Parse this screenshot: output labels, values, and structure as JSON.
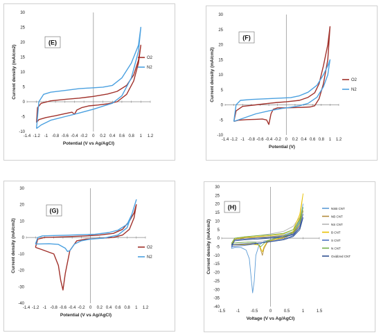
{
  "chart_data": [
    {
      "panel": "(E)",
      "type": "line",
      "xlabel": "Potential (V vs Ag/AgCl)",
      "ylabel": "Current density (mA/cm2)",
      "xlim": [
        -1.4,
        1.2
      ],
      "ylim": [
        -10,
        30
      ],
      "xticks": [
        -1.4,
        -1.2,
        -1,
        -0.8,
        -0.6,
        -0.4,
        -0.2,
        0,
        0.2,
        0.4,
        0.6,
        0.8,
        1,
        1.2
      ],
      "yticks": [
        -10,
        -5,
        0,
        5,
        10,
        15,
        20,
        25,
        30
      ],
      "xtick_labels": [
        "-1.4",
        "-1.2",
        "-1",
        "-0.8",
        "-0.6",
        "-0.4",
        "-0.2",
        "0",
        "0.2",
        "0.4",
        "0.6",
        "0.8",
        "1",
        "1.2"
      ],
      "ytick_labels": [
        "-10",
        "-5",
        "0",
        "5",
        "10",
        "15",
        "20",
        "25",
        "30"
      ],
      "legend_position": "right",
      "series": [
        {
          "name": "O2",
          "color": "#a0302a",
          "x": [
            -1.2,
            -1.18,
            -1.1,
            -0.9,
            -0.6,
            -0.3,
            0,
            0.3,
            0.5,
            0.7,
            0.85,
            0.95,
            1.0,
            0.95,
            0.85,
            0.7,
            0.5,
            0.3,
            0.1,
            -0.1,
            -0.25,
            -0.35,
            -0.4,
            -0.45,
            -0.6,
            -0.8,
            -1.0,
            -1.15,
            -1.2
          ],
          "y": [
            -7,
            -2,
            -0.5,
            0.3,
            0.8,
            1.2,
            1.8,
            2.6,
            3.5,
            5.5,
            9,
            14,
            19,
            13,
            7,
            2.5,
            0,
            -0.7,
            -1.1,
            -1.4,
            -2,
            -2.8,
            -4.2,
            -3.5,
            -4,
            -4.7,
            -5.3,
            -6,
            -7
          ]
        },
        {
          "name": "N2",
          "color": "#4aa0e0",
          "x": [
            -1.2,
            -1.15,
            -1.05,
            -0.9,
            -0.6,
            -0.3,
            0,
            0.2,
            0.4,
            0.6,
            0.8,
            0.95,
            1.0,
            0.95,
            0.8,
            0.6,
            0.4,
            0.2,
            0,
            -0.3,
            -0.6,
            -0.9,
            -1.1,
            -1.2
          ],
          "y": [
            -9,
            0,
            2.5,
            3.2,
            3.8,
            4.4,
            4.7,
            4.9,
            5.5,
            8,
            13,
            19,
            25,
            17,
            8,
            2,
            -0.5,
            -1.5,
            -2.5,
            -3.8,
            -5,
            -6.2,
            -7.8,
            -9
          ]
        }
      ]
    },
    {
      "panel": "(F)",
      "type": "line",
      "xlabel": "Potential (V)",
      "ylabel": "Current density (mA/cm2)",
      "xlim": [
        -1.4,
        1.2
      ],
      "ylim": [
        -10,
        30
      ],
      "xticks": [
        -1.4,
        -1.2,
        -1,
        -0.8,
        -0.6,
        -0.4,
        -0.2,
        0,
        0.2,
        0.4,
        0.6,
        0.8,
        1,
        1.2
      ],
      "yticks": [
        -10,
        -5,
        0,
        5,
        10,
        15,
        20,
        25,
        30
      ],
      "xtick_labels": [
        "-1.4",
        "-1.2",
        "-1",
        "-0.8",
        "-0.6",
        "-0.4",
        "-0.2",
        "0",
        "0.2",
        "0.4",
        "0.6",
        "0.8",
        "1",
        "1.2"
      ],
      "ytick_labels": [
        "-10",
        "-5",
        "0",
        "5",
        "10",
        "15",
        "20",
        "25",
        "30"
      ],
      "legend_position": "right",
      "series": [
        {
          "name": "O2",
          "color": "#a0302a",
          "x": [
            -1.2,
            -1.15,
            -1.0,
            -0.7,
            -0.4,
            -0.2,
            0,
            0.3,
            0.5,
            0.65,
            0.75,
            0.85,
            0.95,
            1.0,
            0.95,
            0.85,
            0.75,
            0.65,
            0.55,
            0.4,
            0.2,
            0,
            -0.2,
            -0.3,
            -0.35,
            -0.4,
            -0.45,
            -0.55,
            -0.7,
            -0.9,
            -1.1,
            -1.2
          ],
          "y": [
            -5.5,
            -2,
            -0.5,
            0,
            0.5,
            0.8,
            1,
            1.5,
            2.5,
            4,
            7,
            13,
            20,
            26,
            15,
            7,
            2,
            -0.3,
            -0.7,
            -0.8,
            -0.9,
            -1,
            -1,
            -1.5,
            -3,
            -6.5,
            -5,
            -4.7,
            -4.8,
            -4.9,
            -5.1,
            -5.5
          ]
        },
        {
          "name": "N2",
          "color": "#4aa0e0",
          "x": [
            -1.2,
            -1.15,
            -1.05,
            -0.8,
            -0.5,
            -0.2,
            0.1,
            0.3,
            0.5,
            0.7,
            0.85,
            0.95,
            1.0,
            0.95,
            0.85,
            0.7,
            0.5,
            0.3,
            0.1,
            -0.1,
            -0.4,
            -0.7,
            -1.0,
            -1.2
          ],
          "y": [
            -5.5,
            0,
            1.5,
            1.8,
            2,
            2.2,
            2.4,
            3,
            4.2,
            6.5,
            10,
            13,
            15,
            10,
            6,
            2.5,
            0.5,
            -0.3,
            -0.8,
            -1.2,
            -2,
            -3,
            -4.5,
            -5.5
          ]
        }
      ]
    },
    {
      "panel": "(G)",
      "type": "line",
      "xlabel": "Potential (V vs Ag/AgCl)",
      "ylabel": "Current density (mA/cm2)",
      "xlim": [
        -1.4,
        1.2
      ],
      "ylim": [
        -40,
        30
      ],
      "xticks": [
        -1.4,
        -1.2,
        -1,
        -0.8,
        -0.6,
        -0.4,
        -0.2,
        0,
        0.2,
        0.4,
        0.6,
        0.8,
        1,
        1.2
      ],
      "yticks": [
        -40,
        -30,
        -20,
        -10,
        0,
        10,
        20,
        30
      ],
      "xtick_labels": [
        "-1.4",
        "-1.2",
        "-1",
        "-0.8",
        "-0.6",
        "-0.4",
        "-0.2",
        "0",
        "0.2",
        "0.4",
        "0.6",
        "0.8",
        "1",
        "1.2"
      ],
      "ytick_labels": [
        "-40",
        "-30",
        "-20",
        "-10",
        "0",
        "10",
        "20",
        "30"
      ],
      "legend_position": "right",
      "series": [
        {
          "name": "O2",
          "color": "#a0302a",
          "x": [
            -1.2,
            -1.15,
            -1.0,
            -0.7,
            -0.4,
            -0.1,
            0.2,
            0.5,
            0.7,
            0.85,
            0.95,
            1.0,
            0.95,
            0.85,
            0.7,
            0.5,
            0.2,
            -0.1,
            -0.3,
            -0.45,
            -0.55,
            -0.6,
            -0.65,
            -0.7,
            -0.8,
            -0.9,
            -1.05,
            -1.2
          ],
          "y": [
            -6,
            -1,
            0,
            0.3,
            0.6,
            1,
            1.5,
            2.5,
            5,
            10,
            15,
            20,
            12,
            5,
            1.5,
            0,
            -0.5,
            -1,
            -2,
            -8,
            -22,
            -32,
            -26,
            -17,
            -10,
            -9,
            -7.5,
            -6
          ]
        },
        {
          "name": "N2",
          "color": "#4aa0e0",
          "x": [
            -1.2,
            -1.15,
            -1.05,
            -0.8,
            -0.5,
            -0.2,
            0.1,
            0.4,
            0.6,
            0.8,
            0.9,
            1.0,
            0.9,
            0.8,
            0.6,
            0.3,
            0,
            -0.2,
            -0.35,
            -0.45,
            -0.5,
            -0.55,
            -0.7,
            -0.9,
            -1.1,
            -1.2
          ],
          "y": [
            -4,
            0,
            1,
            1.2,
            1.4,
            1.7,
            2,
            3,
            4.5,
            8,
            14,
            23,
            14,
            6,
            1.5,
            -0.3,
            -1,
            -2,
            -4,
            -8,
            -8.5,
            -6.5,
            -4.2,
            -3.8,
            -3.9,
            -4
          ]
        }
      ]
    },
    {
      "panel": "(H)",
      "type": "line",
      "xlabel": "Voltage (V vs Ag/AgCl)",
      "ylabel": "Current density (mA/cm2)",
      "xlim": [
        -1.5,
        1.5
      ],
      "ylim": [
        -40,
        30
      ],
      "xticks": [
        -1.5,
        -1,
        -0.5,
        0,
        0.5,
        1,
        1.5
      ],
      "yticks": [
        -40,
        -35,
        -30,
        -25,
        -20,
        -15,
        -10,
        -5,
        0,
        5,
        10,
        15,
        20,
        25,
        30
      ],
      "xtick_labels": [
        "-1.5",
        "-1",
        "-0.5",
        "0",
        "0.5",
        "1",
        "1.5"
      ],
      "ytick_labels": [
        "-40",
        "-35",
        "-30",
        "-25",
        "-20",
        "-15",
        "-10",
        "-5",
        "0",
        "5",
        "10",
        "15",
        "20",
        "25",
        "30"
      ],
      "legend_position": "right",
      "series": [
        {
          "name": "NSB CNT",
          "color": "#5b9bd5",
          "x": [
            -1.2,
            -1.1,
            -0.8,
            -0.4,
            0,
            0.4,
            0.7,
            0.9,
            1.0,
            0.9,
            0.7,
            0.4,
            0.1,
            -0.2,
            -0.35,
            -0.45,
            -0.5,
            -0.55,
            -0.6,
            -0.65,
            -0.75,
            -0.9,
            -1.1,
            -1.2
          ],
          "y": [
            -6,
            -1,
            0,
            0.4,
            0.9,
            1.8,
            4,
            10,
            20,
            10,
            3,
            0,
            -1,
            -2,
            -4,
            -10,
            -25,
            -32,
            -22,
            -12,
            -7,
            -5.5,
            -5.5,
            -6
          ]
        },
        {
          "name": "NB CNT",
          "color": "#b08a3a",
          "x": [
            -1.2,
            -1.1,
            -0.8,
            -0.4,
            0,
            0.4,
            0.7,
            0.9,
            1.0,
            0.9,
            0.7,
            0.4,
            0.1,
            -0.1,
            -0.2,
            -0.25,
            -0.3,
            -0.35,
            -0.45,
            -0.7,
            -1.0,
            -1.2
          ],
          "y": [
            -4,
            -1,
            0,
            0.4,
            0.8,
            1.5,
            3,
            8,
            16,
            8,
            2.5,
            0,
            -1,
            -2.5,
            -6,
            -10,
            -7,
            -4,
            -3,
            -3.2,
            -3.5,
            -4
          ]
        },
        {
          "name": "NS CNT",
          "color": "#b4b4b4",
          "x": [
            -1.2,
            -1.1,
            -0.8,
            -0.4,
            0,
            0.4,
            0.7,
            0.85,
            1.0,
            0.85,
            0.7,
            0.4,
            0.1,
            -0.2,
            -0.4,
            -0.7,
            -1.0,
            -1.2
          ],
          "y": [
            -3,
            -0.5,
            0.8,
            1.5,
            2.5,
            4,
            7,
            11,
            15,
            9,
            4,
            1,
            -0.5,
            -1.5,
            -2,
            -2.3,
            -2.6,
            -3
          ]
        },
        {
          "name": "B CNT",
          "color": "#e8c000",
          "x": [
            -1.2,
            -1.1,
            -0.8,
            -0.4,
            0,
            0.4,
            0.7,
            0.9,
            1.0,
            0.9,
            0.7,
            0.4,
            0.1,
            -0.1,
            -0.2,
            -0.25,
            -0.35,
            -0.6,
            -0.9,
            -1.2
          ],
          "y": [
            -4,
            -0.5,
            0.5,
            1,
            1.5,
            2.5,
            5,
            14,
            26,
            12,
            4,
            0.5,
            -1,
            -2,
            -5,
            -8,
            -4,
            -3.5,
            -3.8,
            -4
          ]
        },
        {
          "name": "S CNT",
          "color": "#4a6fc0",
          "x": [
            -1.2,
            -1.1,
            -0.8,
            -0.4,
            0,
            0.4,
            0.7,
            0.9,
            1.0,
            0.9,
            0.7,
            0.4,
            0.1,
            -0.2,
            -0.5,
            -0.8,
            -1.1,
            -1.2
          ],
          "y": [
            -5,
            -1,
            -0.5,
            0,
            0.5,
            1,
            2.5,
            7,
            14,
            6,
            1.5,
            -0.5,
            -1.5,
            -2.5,
            -3.5,
            -4.2,
            -4.8,
            -5
          ]
        },
        {
          "name": "N CNT",
          "color": "#70ad47",
          "x": [
            -1.2,
            -1.1,
            -0.8,
            -0.4,
            0,
            0.4,
            0.7,
            0.9,
            1.0,
            0.9,
            0.7,
            0.4,
            0.1,
            -0.1,
            -0.2,
            -0.3,
            -0.45,
            -0.7,
            -1.0,
            -1.2
          ],
          "y": [
            -3,
            0,
            0.8,
            1.5,
            2,
            2.8,
            5,
            11,
            18,
            9,
            3.5,
            1,
            -0.3,
            -1.5,
            -3,
            -5,
            -2.5,
            -2.3,
            -2.6,
            -3
          ]
        },
        {
          "name": "Oxidized CNT",
          "color": "#2f4f8f",
          "x": [
            -1.2,
            -1.1,
            -0.8,
            -0.4,
            0,
            0.4,
            0.7,
            0.9,
            1.0,
            0.9,
            0.7,
            0.4,
            0.1,
            -0.2,
            -0.5,
            -0.8,
            -1.1,
            -1.2
          ],
          "y": [
            -4,
            -1.5,
            -1,
            -0.5,
            0,
            0.8,
            2,
            6,
            12,
            5,
            1,
            -1,
            -1.8,
            -2.5,
            -3,
            -3.4,
            -3.8,
            -4
          ]
        }
      ]
    }
  ]
}
